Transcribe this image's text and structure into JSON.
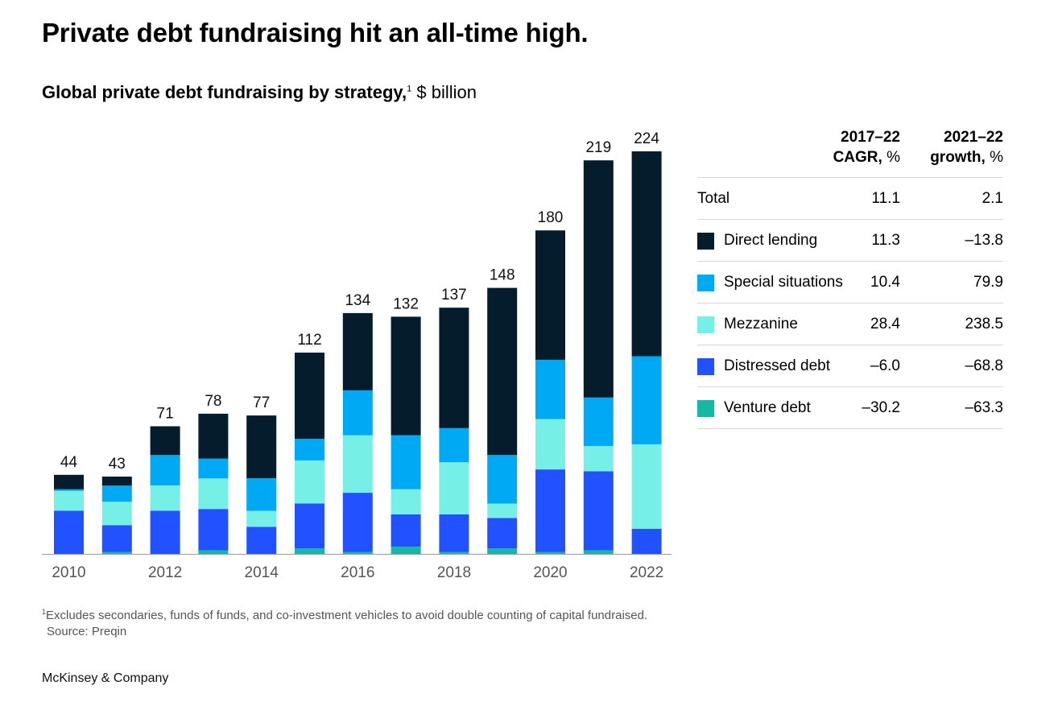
{
  "header": {
    "title": "Private debt fundraising hit an all-time high.",
    "subtitle_bold": "Global private debt fundraising by strategy,",
    "subtitle_sup": "1",
    "subtitle_unit": "$ billion"
  },
  "chart_data": {
    "type": "bar",
    "stacked": true,
    "title": "Global private debt fundraising by strategy",
    "ylabel": "$ billion",
    "categories": [
      "2010",
      "2011",
      "2012",
      "2013",
      "2014",
      "2015",
      "2016",
      "2017",
      "2018",
      "2019",
      "2020",
      "2021",
      "2022"
    ],
    "x_tick_labels": [
      "2010",
      "",
      "2012",
      "",
      "2014",
      "",
      "2016",
      "",
      "2018",
      "",
      "2020",
      "",
      "2022"
    ],
    "totals": [
      44,
      43,
      71,
      78,
      77,
      112,
      134,
      132,
      137,
      148,
      180,
      219,
      224
    ],
    "ylim": [
      0,
      224
    ],
    "series": [
      {
        "name": "Venture debt",
        "color": "#16b8a5",
        "values": [
          0,
          1,
          0,
          2,
          0,
          3,
          1,
          4,
          1,
          3,
          1,
          2,
          0
        ]
      },
      {
        "name": "Distressed debt",
        "color": "#2251ff",
        "values": [
          24,
          15,
          24,
          23,
          15,
          25,
          33,
          18,
          21,
          17,
          46,
          44,
          14
        ]
      },
      {
        "name": "Mezzanine",
        "color": "#76f0e6",
        "values": [
          11,
          13,
          14,
          17,
          9,
          24,
          32,
          14,
          29,
          8,
          28,
          14,
          47
        ]
      },
      {
        "name": "Special situations",
        "color": "#00a9f4",
        "values": [
          1,
          9,
          17,
          11,
          18,
          12,
          25,
          30,
          19,
          27,
          33,
          27,
          49
        ]
      },
      {
        "name": "Direct lending",
        "color": "#051c2c",
        "values": [
          8,
          5,
          16,
          25,
          35,
          48,
          43,
          66,
          67,
          93,
          72,
          132,
          114
        ]
      }
    ],
    "table": {
      "headers": [
        {
          "line1": "2017–22",
          "bold2": "CAGR,",
          "rest2": " %"
        },
        {
          "line1": "2021–22",
          "bold2": "growth,",
          "rest2": " %"
        }
      ],
      "rows": [
        {
          "label": "Total",
          "color": "",
          "cagr": "11.1",
          "growth": "2.1"
        },
        {
          "label": "Direct lending",
          "color": "#051c2c",
          "cagr": "11.3",
          "growth": "–13.8"
        },
        {
          "label": "Special situations",
          "color": "#00a9f4",
          "cagr": "10.4",
          "growth": "79.9"
        },
        {
          "label": "Mezzanine",
          "color": "#76f0e6",
          "cagr": "28.4",
          "growth": "238.5"
        },
        {
          "label": "Distressed debt",
          "color": "#2251ff",
          "cagr": "–6.0",
          "growth": "–68.8"
        },
        {
          "label": "Venture debt",
          "color": "#16b8a5",
          "cagr": "–30.2",
          "growth": "–63.3"
        }
      ]
    }
  },
  "footnote": {
    "marker": "1",
    "text": "Excludes secondaries, funds of funds, and co-investment vehicles to avoid double counting of capital fundraised.",
    "source": "Source: Preqin"
  },
  "brand": "McKinsey & Company"
}
